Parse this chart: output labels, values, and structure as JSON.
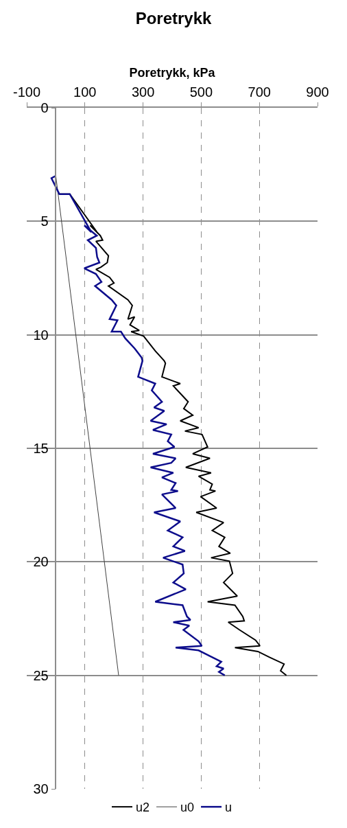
{
  "chart_data": {
    "type": "line",
    "title": "Poretrykk",
    "xlabel": "Poretrykk, kPa",
    "xlim": [
      -100,
      900
    ],
    "xticks": [
      -100,
      100,
      300,
      500,
      700,
      900
    ],
    "ylim": [
      30,
      0
    ],
    "yticks": [
      0,
      5,
      10,
      15,
      20,
      25,
      30
    ],
    "grid": true,
    "legend": "bottom",
    "marker": "none",
    "line_style": "solid",
    "series": [
      {
        "name": "u2",
        "color": "#000000",
        "x": [
          null,
          null,
          12,
          48,
          142,
          118,
          153,
          161,
          138,
          181,
          177,
          155,
          138,
          185,
          200,
          181,
          248,
          263,
          248,
          271,
          255,
          287,
          259,
          302,
          342,
          373,
          377,
          365,
          428,
          404,
          455,
          440,
          471,
          428,
          491,
          444,
          503,
          522,
          471,
          530,
          447,
          534,
          491,
          538,
          530,
          549,
          498,
          553,
          483,
          577,
          538,
          581,
          561,
          600,
          534,
          597,
          608,
          577,
          624,
          522,
          616,
          643,
          648,
          593,
          632,
          687,
          702,
          616,
          695,
          734,
          785,
          773,
          793
        ],
        "values": [
          null,
          null,
          3.8,
          3.8,
          5.48,
          5.18,
          5.63,
          5.83,
          5.88,
          6.52,
          6.82,
          7.02,
          7.12,
          7.47,
          7.72,
          7.85,
          8.46,
          8.71,
          9.31,
          9.21,
          9.56,
          9.81,
          9.86,
          10.06,
          10.71,
          11.15,
          11.25,
          11.85,
          12.15,
          12.25,
          12.95,
          13.25,
          13.54,
          13.79,
          14.09,
          14.24,
          14.39,
          14.94,
          15.24,
          15.44,
          15.84,
          16.08,
          16.23,
          16.58,
          16.83,
          16.88,
          17.13,
          17.63,
          17.82,
          18.27,
          18.62,
          18.92,
          19.32,
          19.62,
          19.82,
          19.97,
          20.51,
          20.91,
          21.51,
          21.76,
          21.91,
          22.41,
          22.6,
          22.66,
          23.0,
          23.45,
          23.7,
          23.78,
          23.95,
          24.2,
          24.5,
          24.8,
          25.0
        ]
      },
      {
        "name": "u0",
        "color": "#404040",
        "x": [
          0,
          0,
          216
        ],
        "values": [
          0,
          3.0,
          25.0
        ]
      },
      {
        "name": "u",
        "color": "#0d0d8c",
        "x": [
          0,
          -15,
          12,
          48,
          122,
          98,
          141,
          110,
          138,
          142,
          150,
          98,
          138,
          157,
          135,
          192,
          208,
          185,
          212,
          192,
          224,
          239,
          271,
          295,
          298,
          283,
          342,
          330,
          365,
          338,
          373,
          326,
          381,
          334,
          397,
          385,
          408,
          334,
          412,
          397,
          326,
          404,
          365,
          412,
          397,
          420,
          365,
          412,
          338,
          428,
          385,
          436,
          404,
          444,
          369,
          436,
          440,
          404,
          447,
          342,
          436,
          451,
          463,
          404,
          459,
          439,
          491,
          502,
          412,
          491,
          530,
          569,
          553,
          577,
          561,
          581
        ],
        "values": [
          3.0,
          3.1,
          3.8,
          3.8,
          5.48,
          5.18,
          5.63,
          5.83,
          6.17,
          6.57,
          6.82,
          7.07,
          7.32,
          7.67,
          7.85,
          8.46,
          8.71,
          9.31,
          9.36,
          9.86,
          9.86,
          10.16,
          10.6,
          11.0,
          11.15,
          11.85,
          12.15,
          12.45,
          12.95,
          13.2,
          13.35,
          13.79,
          13.94,
          14.19,
          14.39,
          14.69,
          14.94,
          15.24,
          15.44,
          15.64,
          15.84,
          16.08,
          16.28,
          16.53,
          16.83,
          16.88,
          17.03,
          17.63,
          17.82,
          18.22,
          18.62,
          18.92,
          19.32,
          19.52,
          19.82,
          20.12,
          20.51,
          20.91,
          21.21,
          21.76,
          21.91,
          22.41,
          22.56,
          22.66,
          22.81,
          23.0,
          23.5,
          23.7,
          23.78,
          23.9,
          24.15,
          24.4,
          24.6,
          24.7,
          24.85,
          25.0
        ]
      }
    ]
  }
}
